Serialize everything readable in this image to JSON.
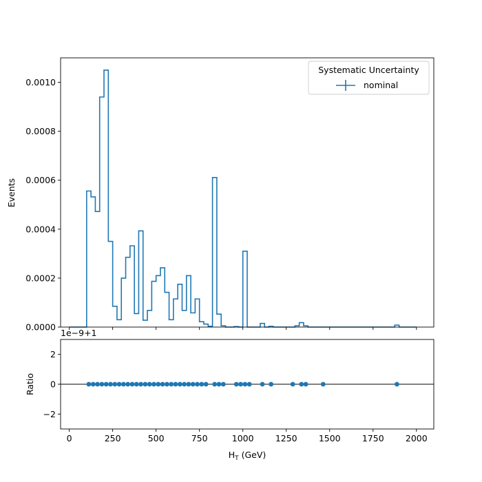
{
  "chart_data": [
    {
      "type": "histogram",
      "panel": "main",
      "ylabel": "Events",
      "ylim": [
        0,
        0.0011
      ],
      "xlim": [
        -50,
        2100
      ],
      "yticks": [
        {
          "value": 0,
          "label": "0.0000"
        },
        {
          "value": 0.0002,
          "label": "0.0002"
        },
        {
          "value": 0.0004,
          "label": "0.0004"
        },
        {
          "value": 0.0006,
          "label": "0.0006"
        },
        {
          "value": 0.0008,
          "label": "0.0008"
        },
        {
          "value": 0.001,
          "label": "0.0010"
        }
      ],
      "bin_edges": [
        0,
        25,
        50,
        75,
        100,
        125,
        150,
        175,
        200,
        225,
        250,
        275,
        300,
        325,
        350,
        375,
        400,
        425,
        450,
        475,
        500,
        525,
        550,
        575,
        600,
        625,
        650,
        675,
        700,
        725,
        750,
        775,
        800,
        825,
        850,
        875,
        900,
        925,
        950,
        975,
        1000,
        1025,
        1050,
        1075,
        1100,
        1125,
        1150,
        1175,
        1200,
        1225,
        1250,
        1275,
        1300,
        1325,
        1350,
        1375,
        1400,
        1425,
        1450,
        1475,
        1500,
        1525,
        1550,
        1575,
        1600,
        1625,
        1650,
        1675,
        1700,
        1725,
        1750,
        1775,
        1800,
        1825,
        1850,
        1875,
        1900,
        1925,
        1950,
        1975,
        2000
      ],
      "series": [
        {
          "name": "nominal",
          "color": "#1f77b4",
          "values": [
            0,
            0,
            0,
            0,
            0.000556,
            0.000532,
            0.000472,
            0.00094,
            0.00105,
            0.00035,
            8.5e-05,
            3e-05,
            0.0002,
            0.000285,
            0.000332,
            5.5e-05,
            0.000393,
            2.8e-05,
            6.8e-05,
            0.000187,
            0.00021,
            0.000242,
            0.000142,
            3e-05,
            0.000115,
            0.000175,
            6.8e-05,
            0.00021,
            5.8e-05,
            0.000115,
            2.2e-05,
            1.2e-05,
            3.5e-06,
            0.000611,
            5.3e-05,
            5e-06,
            0,
            0,
            2e-06,
            0,
            0.00031,
            0,
            0,
            0,
            1.5e-05,
            0,
            3e-06,
            0,
            0,
            0,
            0,
            0,
            5e-06,
            1.8e-05,
            5e-06,
            0,
            0,
            0,
            0,
            0,
            0,
            0,
            0,
            0,
            0,
            0,
            0,
            0,
            0,
            0,
            0,
            0,
            0,
            0,
            0,
            8e-06,
            0,
            0,
            0,
            0
          ]
        }
      ],
      "legend": {
        "title": "Systematic Uncertainty",
        "entries": [
          "nominal"
        ],
        "placement": "upper-right"
      }
    },
    {
      "type": "scatter",
      "panel": "ratio",
      "ylabel": "Ratio",
      "xlabel": "H_T (GeV)",
      "xlabel_main": "H",
      "xlabel_sub": "T",
      "xlabel_rest": " (GeV)",
      "offset_label": "1e−9+1",
      "ylim": [
        -3,
        3
      ],
      "xlim": [
        -50,
        2100
      ],
      "reference_line": 0,
      "yticks": [
        {
          "value": -2,
          "label": "−2"
        },
        {
          "value": 0,
          "label": "0"
        },
        {
          "value": 2,
          "label": "2"
        }
      ],
      "xticks": [
        {
          "value": 0,
          "label": "0"
        },
        {
          "value": 250,
          "label": "250"
        },
        {
          "value": 500,
          "label": "500"
        },
        {
          "value": 750,
          "label": "750"
        },
        {
          "value": 1000,
          "label": "1000"
        },
        {
          "value": 1250,
          "label": "1250"
        },
        {
          "value": 1500,
          "label": "1500"
        },
        {
          "value": 1750,
          "label": "1750"
        },
        {
          "value": 2000,
          "label": "2000"
        }
      ],
      "x": [
        112.5,
        137.5,
        162.5,
        187.5,
        212.5,
        237.5,
        262.5,
        287.5,
        312.5,
        337.5,
        362.5,
        387.5,
        412.5,
        437.5,
        462.5,
        487.5,
        512.5,
        537.5,
        562.5,
        587.5,
        612.5,
        637.5,
        662.5,
        687.5,
        712.5,
        737.5,
        762.5,
        787.5,
        837.5,
        862.5,
        887.5,
        962.5,
        987.5,
        1012.5,
        1037.5,
        1112.5,
        1162.5,
        1287.5,
        1337.5,
        1362.5,
        1462.5,
        1887.5
      ],
      "color": "#1f77b4"
    }
  ]
}
